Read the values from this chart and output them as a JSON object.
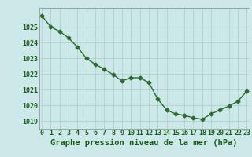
{
  "x": [
    0,
    1,
    2,
    3,
    4,
    5,
    6,
    7,
    8,
    9,
    10,
    11,
    12,
    13,
    14,
    15,
    16,
    17,
    18,
    19,
    20,
    21,
    22,
    23
  ],
  "y": [
    1025.7,
    1025.0,
    1024.7,
    1024.3,
    1023.7,
    1023.0,
    1022.6,
    1022.3,
    1021.95,
    1021.55,
    1021.75,
    1021.75,
    1021.45,
    1020.4,
    1019.7,
    1019.45,
    1019.35,
    1019.2,
    1019.1,
    1019.45,
    1019.7,
    1019.95,
    1020.25,
    1020.9
  ],
  "line_color": "#2d6a2d",
  "marker": "D",
  "marker_size": 2.5,
  "background_color": "#cce8e8",
  "grid_color": "#aacccc",
  "xlabel": "Graphe pression niveau de la mer (hPa)",
  "xlabel_color": "#1a5c1a",
  "tick_color": "#1a5c1a",
  "ylim": [
    1018.5,
    1026.2
  ],
  "yticks": [
    1019,
    1020,
    1021,
    1022,
    1023,
    1024,
    1025
  ],
  "xlim": [
    -0.3,
    23.3
  ],
  "xticks": [
    0,
    1,
    2,
    3,
    4,
    5,
    6,
    7,
    8,
    9,
    10,
    11,
    12,
    13,
    14,
    15,
    16,
    17,
    18,
    19,
    20,
    21,
    22,
    23
  ],
  "xlabel_fontsize": 7.5,
  "tick_fontsize": 6.0,
  "linewidth": 1.0
}
